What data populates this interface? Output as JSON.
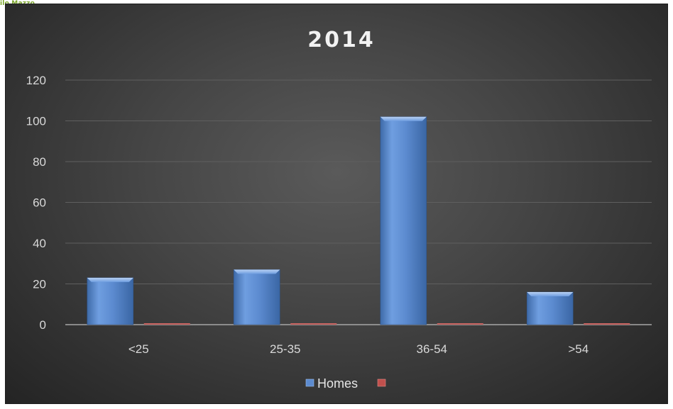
{
  "corner_logo_text": "ilo Mazzo",
  "chart_data": {
    "type": "bar",
    "title": "2014",
    "xlabel": "",
    "ylabel": "",
    "categories": [
      "<25",
      "25-35",
      "36-54",
      ">54"
    ],
    "series": [
      {
        "name": "Homes",
        "values": [
          23,
          27,
          102,
          16
        ],
        "color": "#4f81bd"
      },
      {
        "name": "",
        "values": [
          0,
          0,
          0,
          0
        ],
        "color": "#c0504d"
      }
    ],
    "ylim": [
      0,
      120
    ],
    "yticks": [
      "0",
      "20",
      "40",
      "60",
      "80",
      "100",
      "120"
    ],
    "grid": true,
    "legend_position": "bottom"
  }
}
